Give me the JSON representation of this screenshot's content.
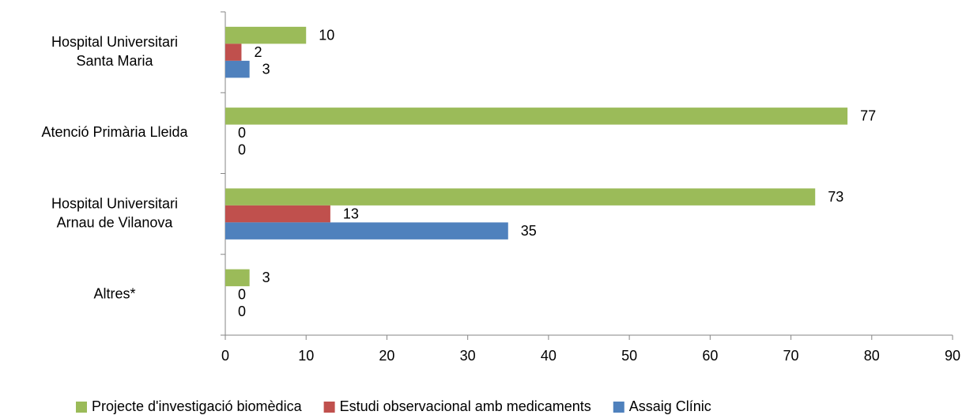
{
  "chart_data": {
    "type": "barh",
    "categories": [
      "Hospital Universitari\nSanta Maria",
      "Atenció Primària Lleida",
      "Hospital Universitari\nArnau de Vilanova",
      "Altres*"
    ],
    "series": [
      {
        "name": "Projecte d'investigació biomèdica",
        "color": "#9bbb59",
        "values": [
          10,
          77,
          73,
          3
        ]
      },
      {
        "name": "Estudi observacional amb medicaments",
        "color": "#c0504d",
        "values": [
          2,
          0,
          13,
          0
        ]
      },
      {
        "name": "Assaig Clínic",
        "color": "#4f81bd",
        "values": [
          3,
          0,
          35,
          0
        ]
      }
    ],
    "xlim": [
      0,
      90
    ],
    "xticks": [
      0,
      10,
      20,
      30,
      40,
      50,
      60,
      70,
      80,
      90
    ],
    "grid": false,
    "legend": "bottom"
  }
}
